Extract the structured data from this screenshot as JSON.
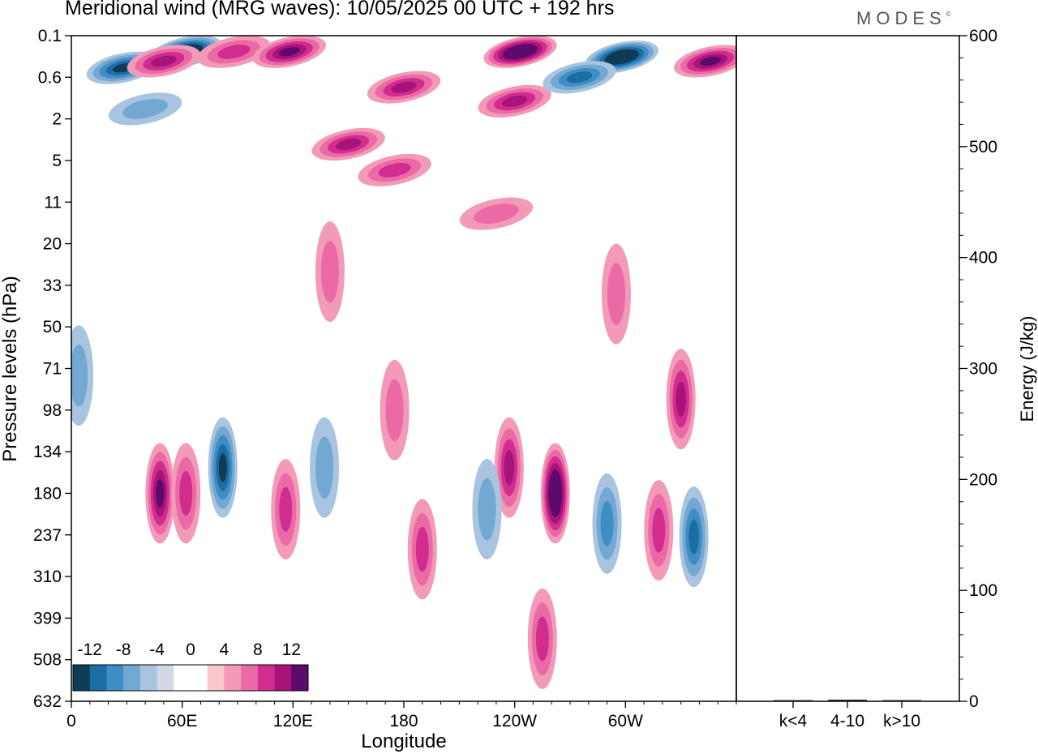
{
  "title": "Meridional wind (MRG waves):  10/05/2025  00 UTC  + 192 hrs",
  "brand": "MODES",
  "brand_mark": "©",
  "chart_data": [
    {
      "type": "heatmap",
      "title": "Meridional wind (MRG waves):  10/05/2025  00 UTC  + 192 hrs",
      "xlabel": "Longitude",
      "ylabel": "Pressure levels (hPa)",
      "x_ticks": [
        "0",
        "60E",
        "120E",
        "180",
        "120W",
        "60W"
      ],
      "x_tick_degrees": [
        0,
        60,
        120,
        180,
        240,
        300
      ],
      "xlim": [
        0,
        360
      ],
      "y_ticks": [
        "0.1",
        "0.6",
        "2",
        "5",
        "11",
        "20",
        "33",
        "50",
        "71",
        "98",
        "134",
        "180",
        "237",
        "310",
        "399",
        "508",
        "632"
      ],
      "colorbar": {
        "labels": [
          "-12",
          "-8",
          "-4",
          "0",
          "4",
          "8",
          "12"
        ],
        "colors": [
          "#0f3b57",
          "#1b6da3",
          "#3e8dc5",
          "#72a8d2",
          "#a9c4e0",
          "#d4d7e8",
          "#ffffff",
          "#ffffff",
          "#f8c8cc",
          "#f49ab9",
          "#ea6aa6",
          "#d02d8f",
          "#a8137a",
          "#5c0a6c"
        ]
      },
      "features": [
        {
          "lon": 28,
          "level": 0.4,
          "value": -10
        },
        {
          "lon": 62,
          "level": 0.2,
          "value": -14
        },
        {
          "lon": 88,
          "level": 0.2,
          "value": 6
        },
        {
          "lon": 118,
          "level": 0.2,
          "value": 10
        },
        {
          "lon": 50,
          "level": 0.3,
          "value": 8
        },
        {
          "lon": 243,
          "level": 0.2,
          "value": 14
        },
        {
          "lon": 298,
          "level": 0.25,
          "value": -14
        },
        {
          "lon": 346,
          "level": 0.3,
          "value": 11
        },
        {
          "lon": 180,
          "level": 0.8,
          "value": 8
        },
        {
          "lon": 240,
          "level": 1.2,
          "value": 9
        },
        {
          "lon": 150,
          "level": 3.5,
          "value": 8
        },
        {
          "lon": 175,
          "level": 6,
          "value": 6
        },
        {
          "lon": 275,
          "level": 0.6,
          "value": -8
        },
        {
          "lon": 40,
          "level": 1.5,
          "value": -5
        },
        {
          "lon": 230,
          "level": 13,
          "value": 4
        },
        {
          "lon": 140,
          "level": 28,
          "value": 4
        },
        {
          "lon": 295,
          "level": 36,
          "value": 4
        },
        {
          "lon": 82,
          "level": 150,
          "value": -10
        },
        {
          "lon": 48,
          "level": 180,
          "value": 10
        },
        {
          "lon": 62,
          "level": 180,
          "value": 6
        },
        {
          "lon": 116,
          "level": 200,
          "value": 6
        },
        {
          "lon": 190,
          "level": 260,
          "value": 6
        },
        {
          "lon": 237,
          "level": 150,
          "value": 9
        },
        {
          "lon": 262,
          "level": 180,
          "value": 14
        },
        {
          "lon": 318,
          "level": 230,
          "value": 6
        },
        {
          "lon": 337,
          "level": 240,
          "value": -9
        },
        {
          "lon": 330,
          "level": 90,
          "value": 8
        },
        {
          "lon": 255,
          "level": 450,
          "value": 6
        },
        {
          "lon": 4,
          "level": 75,
          "value": -5
        },
        {
          "lon": 290,
          "level": 220,
          "value": -6
        },
        {
          "lon": 225,
          "level": 200,
          "value": -5
        },
        {
          "lon": 137,
          "level": 150,
          "value": -4
        },
        {
          "lon": 175,
          "level": 98,
          "value": 5
        }
      ]
    },
    {
      "type": "bar",
      "xlabel": "",
      "ylabel": "Energy (J/kg)",
      "categories": [
        "k<4",
        "4-10",
        "k>10"
      ],
      "values": [
        0.3,
        1.5,
        0.3
      ],
      "ylim": [
        0,
        600
      ],
      "y_ticks": [
        "0",
        "100",
        "200",
        "300",
        "400",
        "500",
        "600"
      ]
    }
  ]
}
